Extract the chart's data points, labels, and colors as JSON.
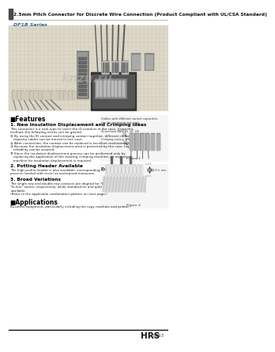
{
  "title": "2.5mm Pitch Connector for Discrete Wire Connection (Product Compliant with UL/CSA Standard)",
  "series_label": "DF1B Series",
  "bg_color": "#ffffff",
  "header_bar_color": "#4a4a4a",
  "blue_accent": "#336699",
  "features_title": "■Features",
  "section1_title": "1. New Insulation Displacement and Crimping Ideas",
  "section1_body_line1": "This connector is a new type to insert the ID contacts in the case. Using this",
  "section1_body_line2": "method, the following merits can be gained.",
  "section1_item1": "① By using the ID contact and crimping contact together, different current",
  "section1_item1b": "   capacity cables can be moved in one case.",
  "section1_item2": "② After connection, the contact can be replaced is excellent maintainability.",
  "section1_item3": "③ Because the insulation displacement area is protected by the case, high",
  "section1_item3b": "   reliability can be assured.",
  "section1_item4": "④ Since the insulation displacement process can be performed only by",
  "section1_item4b": "   replacing the application of the existing crimping machine, no expensive",
  "section1_item4c": "   machine for insulation displacement is required.",
  "section2_title": "2. Potting Header Available",
  "section2_body1": "The high profile header is also available, corresponding to the board potting",
  "section2_body2": "process (sealed with resin) as waterproof measures.",
  "section3_title": "3. Broad Variations",
  "section3_body1": "The single row and double row contacts are aligned for \"Board to Cable\" and",
  "section3_body2": "\"In-line\" series, respectively, while standard tin and gold plating products are",
  "section3_body3": "available.",
  "section3_body4": "(Refer to the applicable combination pattern on next page.)",
  "applications_title": "■Applications",
  "applications_body": "Business equipment, particularly including the copy machine and printer",
  "fig1_caption": "Figure 1",
  "fig1_note1": "Cables with different current capacities",
  "fig1_note2": "can be packed in one case.",
  "fig1_sub1": "ID terminal (AWG24, 26, 28)",
  "fig1_sub2": "Crimping contact (AWG14 to 22)",
  "fig2_title": "Potting status",
  "fig2_note": "10.5 h  min.",
  "fig2_caption": "Figure 2",
  "footer_brand": "HRS",
  "footer_code": "B153",
  "footer_line_color": "#000000",
  "img_bg": "#ddd8c8",
  "img_grid": "#c8c4b0"
}
